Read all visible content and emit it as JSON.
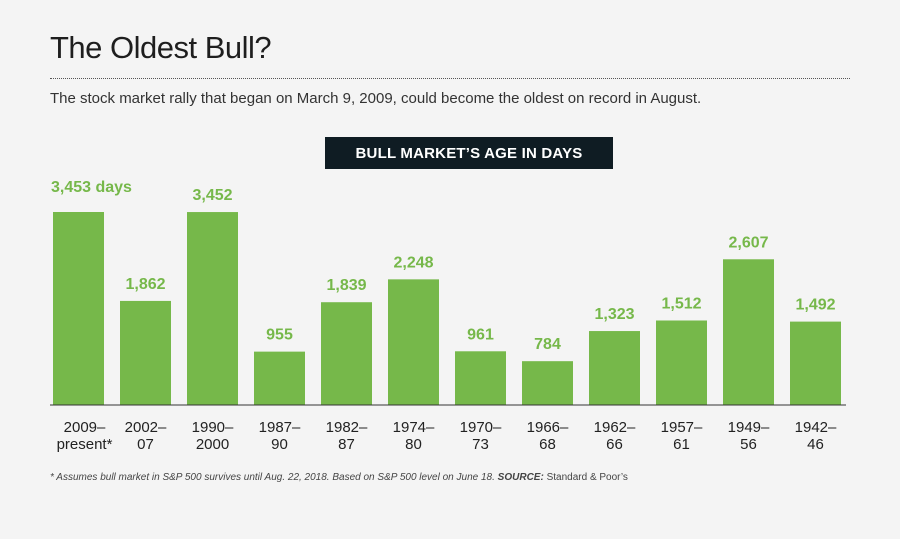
{
  "header": {
    "title": "The Oldest Bull?",
    "subtitle": "The stock market rally that began on March 9, 2009, could become the oldest on record in August."
  },
  "chart_data": {
    "type": "bar",
    "title": "BULL MARKET’S AGE IN DAYS",
    "xlabel": "",
    "ylabel": "",
    "categories": [
      [
        "2009–",
        "present*"
      ],
      [
        "2002–",
        "07"
      ],
      [
        "1990–",
        "2000"
      ],
      [
        "1987–",
        "90"
      ],
      [
        "1982–",
        "87"
      ],
      [
        "1974–",
        "80"
      ],
      [
        "1970–",
        "73"
      ],
      [
        "1966–",
        "68"
      ],
      [
        "1962–",
        "66"
      ],
      [
        "1957–",
        "61"
      ],
      [
        "1949–",
        "56"
      ],
      [
        "1942–",
        "46"
      ]
    ],
    "values": [
      3453,
      1862,
      3452,
      955,
      1839,
      2248,
      961,
      784,
      1323,
      1512,
      2607,
      1492
    ],
    "value_labels": [
      "3,453 days",
      "1,862",
      "3,452",
      "955",
      "1,839",
      "2,248",
      "961",
      "784",
      "1,323",
      "1,512",
      "2,607",
      "1,492"
    ],
    "ylim": [
      0,
      3453
    ],
    "grid": false,
    "legend": "none",
    "colors": {
      "bar": "#76b84a",
      "banner": "#0f1c23"
    }
  },
  "footnote": {
    "text": "* Assumes bull market in S&P 500 survives until Aug. 22, 2018. Based on S&P 500 level on June 18.",
    "source_label": "SOURCE:",
    "source_value": "Standard & Poor’s"
  }
}
